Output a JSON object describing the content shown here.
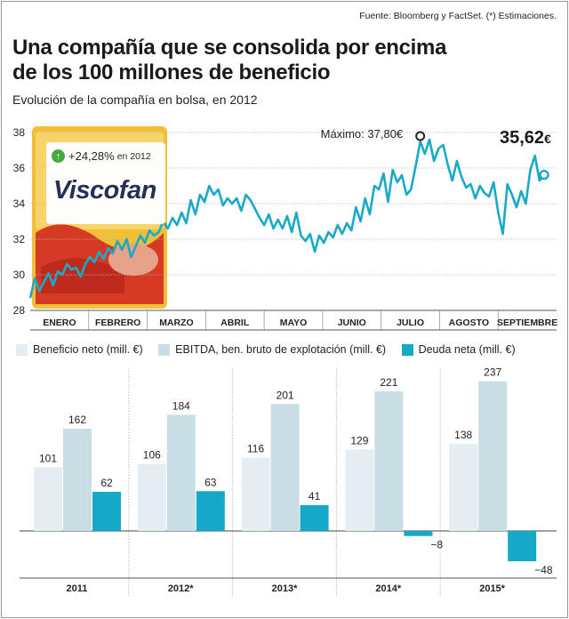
{
  "source": "Fuente: Bloomberg y FactSet. (*) Estimaciones.",
  "title_line1": "Una compañía que se consolida por encima",
  "title_line2": "de los 100 millones de beneficio",
  "subtitle": "Evolución de la compañía en bolsa, en 2012",
  "badge": {
    "arrow": "↑",
    "change": "+24,28%",
    "period": "en 2012",
    "logo": "Viscofan"
  },
  "colors": {
    "line": "#1ba9c8",
    "beneficio": "#e4edf1",
    "ebitda": "#c9dde4",
    "deuda": "#16a9c7",
    "grid": "#b5b5b5",
    "package_red": "#d63a25",
    "package_yellow": "#f2c036"
  },
  "chart_data": [
    {
      "type": "line",
      "ylim": [
        28,
        38
      ],
      "y_ticks": [
        28,
        30,
        32,
        34,
        36,
        38
      ],
      "y_tick_labels": [
        "28",
        "30",
        "32",
        "34",
        "36",
        "38"
      ],
      "months": [
        "ENERO",
        "FEBRERO",
        "MARZO",
        "ABRIL",
        "MAYO",
        "JUNIO",
        "JULIO",
        "AGOSTO",
        "SEPTIEMBRE"
      ],
      "series": [
        {
          "values": [
            28.7,
            29.8,
            29.1,
            29.6,
            30.1,
            29.4,
            30.2,
            30.0,
            30.6,
            30.3,
            30.4,
            29.9,
            30.6,
            31.0,
            30.7,
            31.3,
            30.9,
            31.5,
            31.2,
            31.9,
            31.4,
            32.0,
            31.0,
            31.6,
            32.2,
            31.8,
            32.5,
            32.2,
            32.4,
            33.0,
            32.6,
            33.2,
            32.8,
            33.5,
            32.9,
            34.2,
            33.4,
            34.5,
            34.1,
            35.0,
            34.5,
            34.8,
            33.9,
            34.3,
            34.0,
            34.3,
            33.6,
            34.5,
            34.2,
            33.7,
            33.2,
            32.8,
            33.4,
            32.6,
            33.1,
            32.6,
            33.3,
            32.4,
            33.5,
            32.2,
            31.9,
            32.3,
            31.3,
            32.2,
            31.8,
            32.4,
            32.1,
            32.8,
            32.3,
            32.9,
            32.5,
            33.8,
            33.0,
            34.3,
            33.4,
            35.0,
            34.8,
            35.7,
            34.1,
            35.9,
            35.2,
            35.6,
            34.5,
            34.8,
            36.1,
            37.5,
            36.8,
            37.6,
            36.4,
            37.1,
            37.3,
            36.2,
            35.3,
            36.4,
            35.5,
            34.9,
            35.1,
            34.3,
            35.0,
            34.6,
            34.4,
            35.2,
            33.5,
            32.3,
            35.1,
            34.5,
            33.8,
            34.7,
            34.0,
            35.9,
            36.7,
            35.3,
            35.62
          ],
          "max_index": 85
        }
      ],
      "max_label": "Máximo: 37,80€",
      "last_value": "35,62",
      "last_unit": "€"
    },
    {
      "type": "bar",
      "categories": [
        "2011",
        "2012*",
        "2013*",
        "2014*",
        "2015*"
      ],
      "series": [
        {
          "name": "Beneficio neto (mill. €)",
          "values": [
            101,
            106,
            116,
            129,
            138
          ],
          "labels": [
            "101",
            "106",
            "116",
            "129",
            "138"
          ]
        },
        {
          "name": "EBITDA, ben. bruto de explotación (mill. €)",
          "values": [
            162,
            184,
            201,
            221,
            237
          ],
          "labels": [
            "162",
            "184",
            "201",
            "221",
            "237"
          ]
        },
        {
          "name": "Deuda neta (mill. €)",
          "values": [
            62,
            63,
            41,
            -8,
            -48
          ],
          "labels": [
            "62",
            "63",
            "41",
            "−8",
            "−48"
          ]
        }
      ],
      "legend": "top"
    }
  ]
}
